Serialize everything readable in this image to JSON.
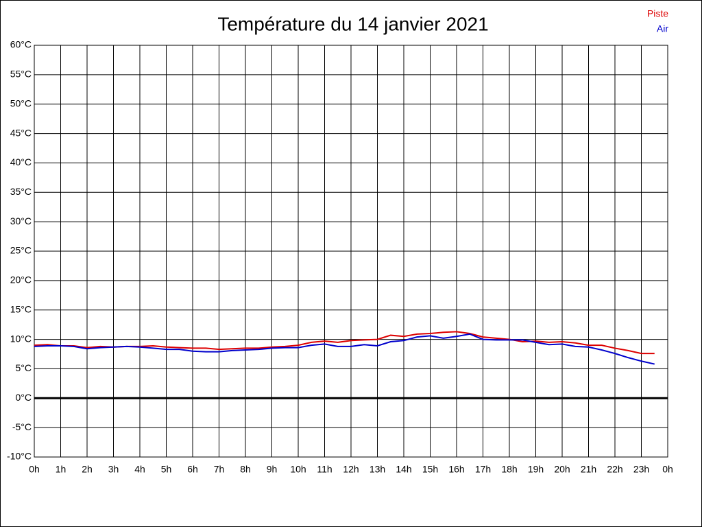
{
  "chart_data": {
    "type": "line",
    "title": "Température du 14 janvier 2021",
    "x": [
      0,
      0.5,
      1,
      1.5,
      2,
      2.5,
      3,
      3.5,
      4,
      4.5,
      5,
      5.5,
      6,
      6.5,
      7,
      7.5,
      8,
      8.5,
      9,
      9.5,
      10,
      10.5,
      11,
      11.5,
      12,
      12.5,
      13,
      13.5,
      14,
      14.5,
      15,
      15.5,
      16,
      16.5,
      17,
      17.5,
      18,
      18.5,
      19,
      19.5,
      20,
      20.5,
      21,
      21.5,
      22,
      22.5,
      23,
      23.5
    ],
    "series": [
      {
        "name": "Piste",
        "color": "#dd0000",
        "values": [
          9.0,
          9.1,
          8.9,
          8.9,
          8.6,
          8.8,
          8.7,
          8.8,
          8.8,
          8.9,
          8.7,
          8.6,
          8.5,
          8.5,
          8.3,
          8.4,
          8.5,
          8.5,
          8.7,
          8.8,
          9.0,
          9.5,
          9.7,
          9.5,
          9.8,
          9.9,
          10.0,
          10.7,
          10.5,
          10.9,
          11.0,
          11.2,
          11.3,
          11.0,
          10.4,
          10.2,
          10.0,
          9.6,
          9.7,
          9.5,
          9.6,
          9.4,
          9.0,
          9.0,
          8.5,
          8.1,
          7.6,
          7.6
        ]
      },
      {
        "name": "Air",
        "color": "#0000cc",
        "values": [
          8.8,
          8.9,
          8.9,
          8.8,
          8.4,
          8.6,
          8.7,
          8.8,
          8.7,
          8.5,
          8.3,
          8.3,
          8.0,
          7.9,
          7.9,
          8.1,
          8.2,
          8.3,
          8.5,
          8.6,
          8.6,
          9.0,
          9.2,
          8.8,
          8.8,
          9.1,
          8.9,
          9.6,
          9.8,
          10.4,
          10.6,
          10.2,
          10.5,
          10.9,
          10.0,
          9.9,
          9.9,
          9.9,
          9.5,
          9.1,
          9.2,
          8.8,
          8.7,
          8.2,
          7.6,
          6.9,
          6.3,
          5.8
        ]
      }
    ],
    "xlim": [
      0,
      24
    ],
    "xticks": [
      {
        "value": 0,
        "label": "0h"
      },
      {
        "value": 1,
        "label": "1h"
      },
      {
        "value": 2,
        "label": "2h"
      },
      {
        "value": 3,
        "label": "3h"
      },
      {
        "value": 4,
        "label": "4h"
      },
      {
        "value": 5,
        "label": "5h"
      },
      {
        "value": 6,
        "label": "6h"
      },
      {
        "value": 7,
        "label": "7h"
      },
      {
        "value": 8,
        "label": "8h"
      },
      {
        "value": 9,
        "label": "9h"
      },
      {
        "value": 10,
        "label": "10h"
      },
      {
        "value": 11,
        "label": "11h"
      },
      {
        "value": 12,
        "label": "12h"
      },
      {
        "value": 13,
        "label": "13h"
      },
      {
        "value": 14,
        "label": "14h"
      },
      {
        "value": 15,
        "label": "15h"
      },
      {
        "value": 16,
        "label": "16h"
      },
      {
        "value": 17,
        "label": "17h"
      },
      {
        "value": 18,
        "label": "18h"
      },
      {
        "value": 19,
        "label": "19h"
      },
      {
        "value": 20,
        "label": "20h"
      },
      {
        "value": 21,
        "label": "21h"
      },
      {
        "value": 22,
        "label": "22h"
      },
      {
        "value": 23,
        "label": "23h"
      },
      {
        "value": 24,
        "label": "0h"
      }
    ],
    "ylim": [
      -10,
      60
    ],
    "yticks": [
      {
        "value": -10,
        "label": "-10°C"
      },
      {
        "value": -5,
        "label": "-5°C"
      },
      {
        "value": 0,
        "label": "0°C"
      },
      {
        "value": 5,
        "label": "5°C"
      },
      {
        "value": 10,
        "label": "10°C"
      },
      {
        "value": 15,
        "label": "15°C"
      },
      {
        "value": 20,
        "label": "20°C"
      },
      {
        "value": 25,
        "label": "25°C"
      },
      {
        "value": 30,
        "label": "30°C"
      },
      {
        "value": 35,
        "label": "35°C"
      },
      {
        "value": 40,
        "label": "40°C"
      },
      {
        "value": 45,
        "label": "45°C"
      },
      {
        "value": 50,
        "label": "50°C"
      },
      {
        "value": 55,
        "label": "55°C"
      },
      {
        "value": 60,
        "label": "60°C"
      }
    ],
    "grid": true,
    "zero_line": true,
    "legend": "top-right"
  }
}
